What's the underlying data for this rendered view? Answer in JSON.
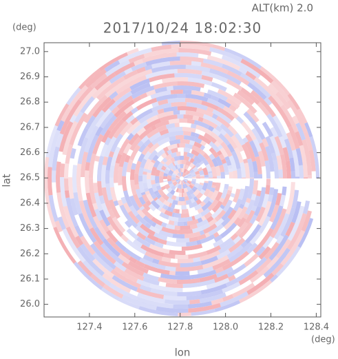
{
  "chart_data": {
    "type": "radar-ppi",
    "title": "2017/10/24 18:02:30",
    "subtitle": "ALT(km) 2.0",
    "x_label": "lon",
    "y_label": "lat",
    "x_unit": "(deg)",
    "y_unit": "(deg)",
    "xlim": [
      127.2,
      128.42
    ],
    "ylim": [
      25.95,
      27.035
    ],
    "xticks": [
      127.4,
      127.6,
      127.8,
      {
        "value": 128.0,
        "label": "128.0"
      },
      128.2,
      128.4
    ],
    "yticks": [
      {
        "value": 26.0,
        "label": "26.0"
      },
      26.1,
      26.2,
      26.3,
      26.4,
      26.5,
      26.6,
      26.7,
      26.8,
      26.9,
      {
        "value": 27.0,
        "label": "27.0"
      }
    ]
  }
}
